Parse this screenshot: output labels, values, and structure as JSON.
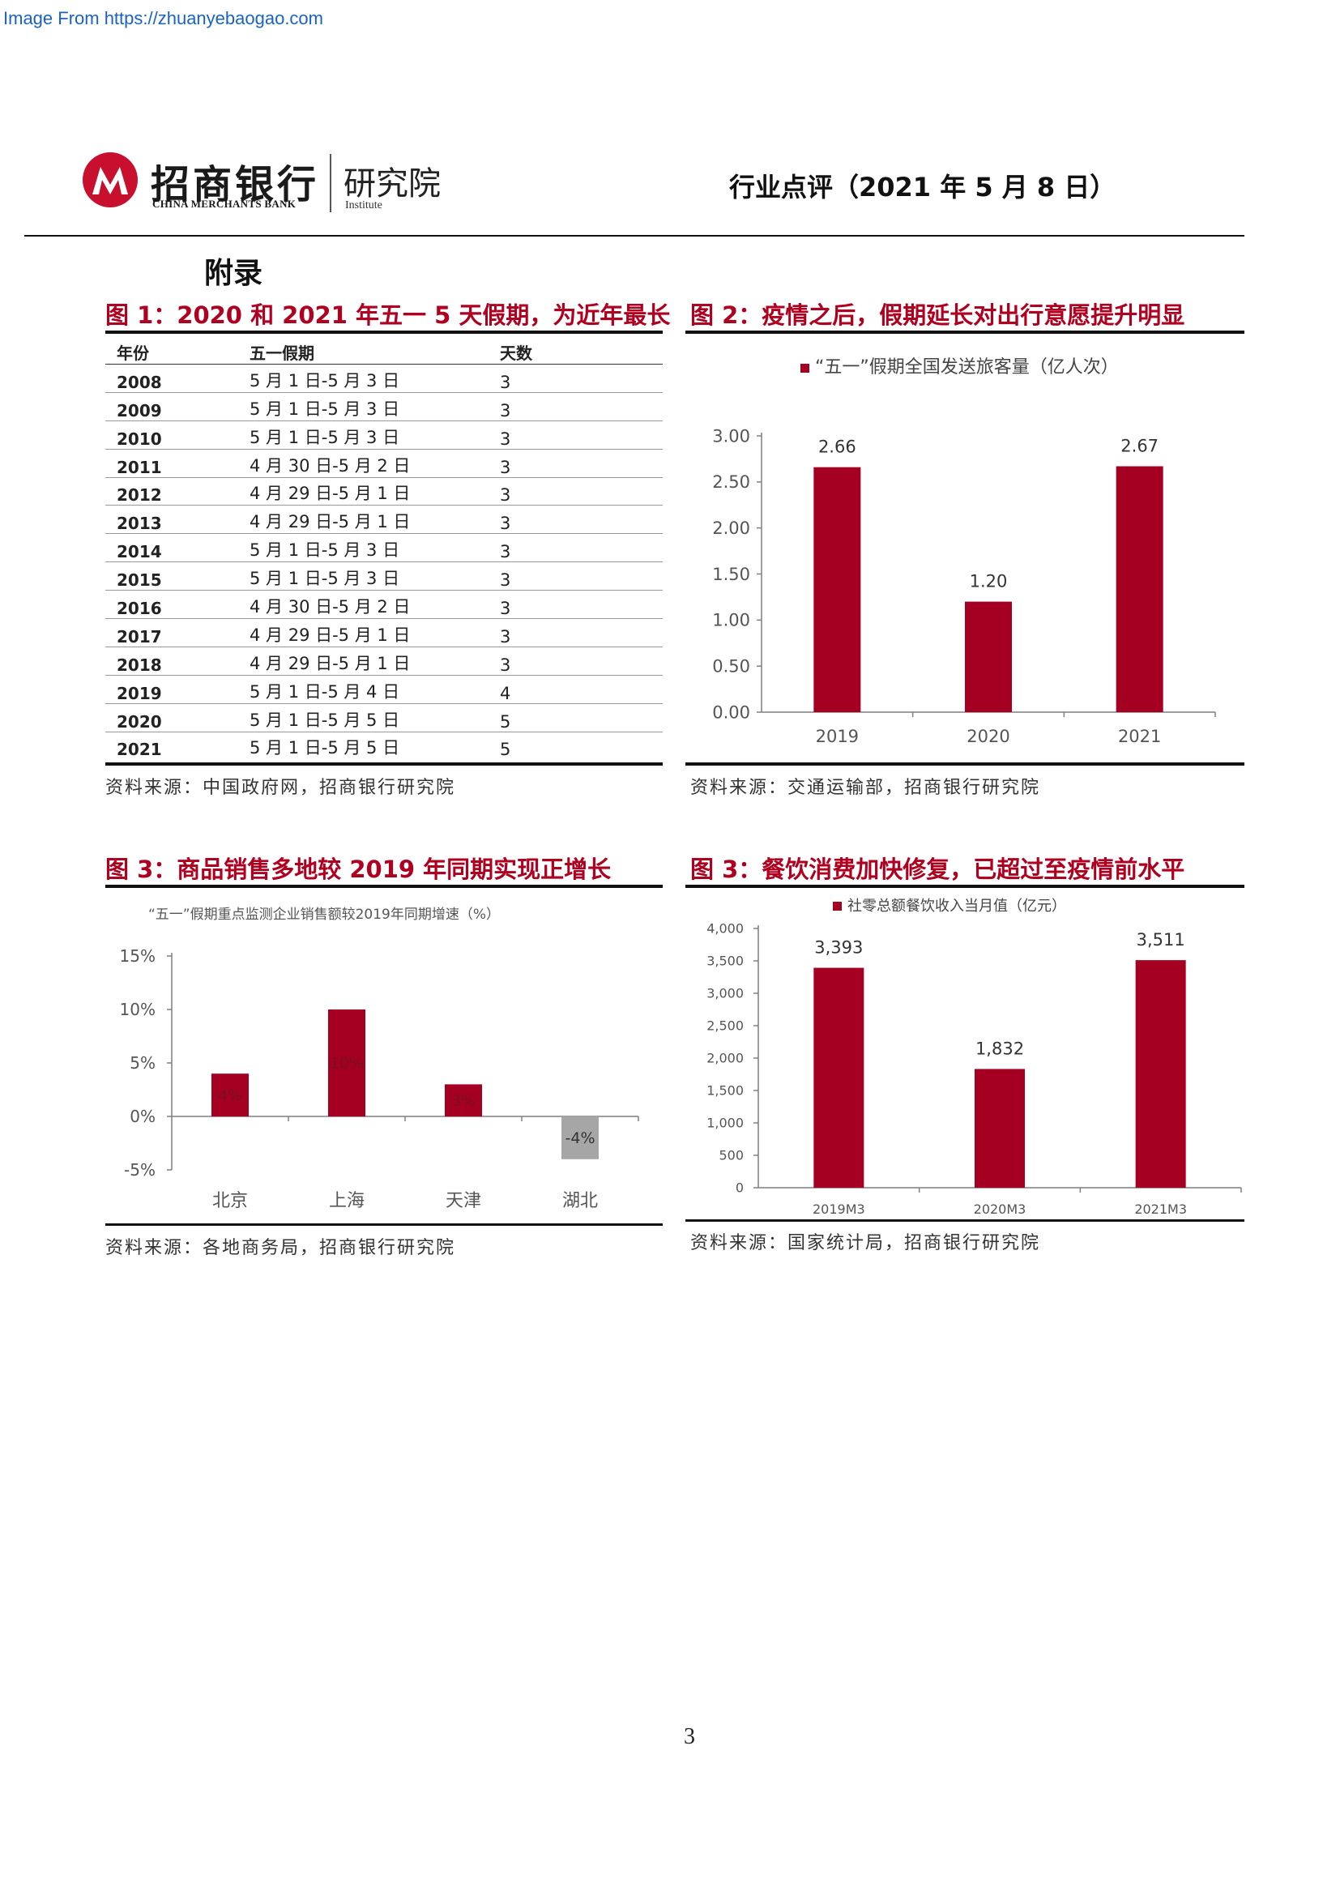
{
  "watermark": "Image From https://zhuanyebaogao.com",
  "header": {
    "logo_cn": "招商银行",
    "logo_en": "CHINA MERCHANTS BANK",
    "institute_cn": "研究院",
    "institute_en": "Institute",
    "report_type": "行业点评（2021 年 5 月 8 日）"
  },
  "appendix_title": "附录",
  "colors": {
    "accent": "#b00020",
    "bar": "#a50021",
    "neg_bar": "#a6a6a6"
  },
  "figures": {
    "fig1": {
      "title": "图 1：2020 和 2021 年五一 5 天假期，为近年最长",
      "source": "资料来源：中国政府网，招商银行研究院",
      "table": {
        "headers": [
          "年份",
          "五一假期",
          "天数"
        ],
        "rows": [
          [
            "2008",
            "5 月 1 日-5 月 3 日",
            "3"
          ],
          [
            "2009",
            "5 月 1 日-5 月 3 日",
            "3"
          ],
          [
            "2010",
            "5 月 1 日-5 月 3 日",
            "3"
          ],
          [
            "2011",
            "4 月 30 日-5 月 2 日",
            "3"
          ],
          [
            "2012",
            "4 月 29 日-5 月 1 日",
            "3"
          ],
          [
            "2013",
            "4 月 29 日-5 月 1 日",
            "3"
          ],
          [
            "2014",
            "5 月 1 日-5 月 3 日",
            "3"
          ],
          [
            "2015",
            "5 月 1 日-5 月 3 日",
            "3"
          ],
          [
            "2016",
            "4 月 30 日-5 月 2 日",
            "3"
          ],
          [
            "2017",
            "4 月 29 日-5 月 1 日",
            "3"
          ],
          [
            "2018",
            "4 月 29 日-5 月 1 日",
            "3"
          ],
          [
            "2019",
            "5 月 1 日-5 月 4 日",
            "4"
          ],
          [
            "2020",
            "5 月 1 日-5 月 5 日",
            "5"
          ],
          [
            "2021",
            "5 月 1 日-5 月 5 日",
            "5"
          ]
        ]
      }
    },
    "fig2": {
      "title": "图 2：疫情之后，假期延长对出行意愿提升明显",
      "source": "资料来源：交通运输部，招商银行研究院"
    },
    "fig3": {
      "title": "图 3：商品销售多地较 2019 年同期实现正增长",
      "source": "资料来源：各地商务局，招商银行研究院"
    },
    "fig4": {
      "title": "图 3：餐饮消费加快修复，已超过至疫情前水平",
      "source": "资料来源：国家统计局，招商银行研究院"
    }
  },
  "chart_data": [
    {
      "type": "bar",
      "legend": "“五一”假期全国发送旅客量（亿人次）",
      "legend_position": "top",
      "categories": [
        "2019",
        "2020",
        "2021"
      ],
      "series": [
        {
          "name": "“五一”假期全国发送旅客量（亿人次）",
          "values": [
            2.66,
            1.2,
            2.67
          ]
        }
      ],
      "data_labels": [
        "2.66",
        "1.20",
        "2.67"
      ],
      "ylim": [
        0,
        3.0
      ],
      "yticks": [
        "0.00",
        "0.50",
        "1.00",
        "1.50",
        "2.00",
        "2.50",
        "3.00"
      ],
      "grid": false
    },
    {
      "type": "bar",
      "title": "“五一”假期重点监测企业销售额较2019年同期增速（%）",
      "categories": [
        "北京",
        "上海",
        "天津",
        "湖北"
      ],
      "values": [
        4,
        10,
        3,
        -4
      ],
      "data_labels": [
        "4%",
        "10%",
        "3%",
        "-4%"
      ],
      "ylim": [
        -5,
        15
      ],
      "yticks": [
        "-5%",
        "0%",
        "5%",
        "10%",
        "15%"
      ],
      "grid": false
    },
    {
      "type": "bar",
      "legend": "社零总额餐饮收入当月值（亿元）",
      "legend_position": "top",
      "categories": [
        "2019M3",
        "2020M3",
        "2021M3"
      ],
      "series": [
        {
          "name": "社零总额餐饮收入当月值（亿元）",
          "values": [
            3393,
            1832,
            3511
          ]
        }
      ],
      "data_labels": [
        "3,393",
        "1,832",
        "3,511"
      ],
      "ylim": [
        0,
        4000
      ],
      "yticks": [
        "0",
        "500",
        "1,000",
        "1,500",
        "2,000",
        "2,500",
        "3,000",
        "3,500",
        "4,000"
      ],
      "grid": false
    }
  ],
  "page_number": "3"
}
